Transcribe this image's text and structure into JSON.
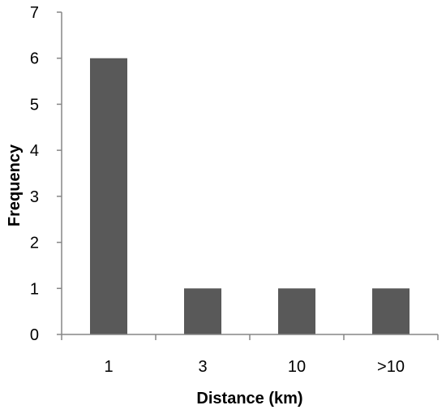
{
  "chart_data": {
    "type": "bar",
    "title": "",
    "xlabel": "Distance (km)",
    "ylabel": "Frequency",
    "categories": [
      "1",
      "3",
      "10",
      ">10"
    ],
    "values": [
      6,
      1,
      1,
      1
    ],
    "ylim": [
      0,
      7
    ],
    "yticks": [
      "0",
      "1",
      "2",
      "3",
      "4",
      "5",
      "6",
      "7"
    ],
    "grid": false,
    "legend": "none",
    "colors": {
      "bar": "#595959",
      "axis": "#868686"
    }
  }
}
